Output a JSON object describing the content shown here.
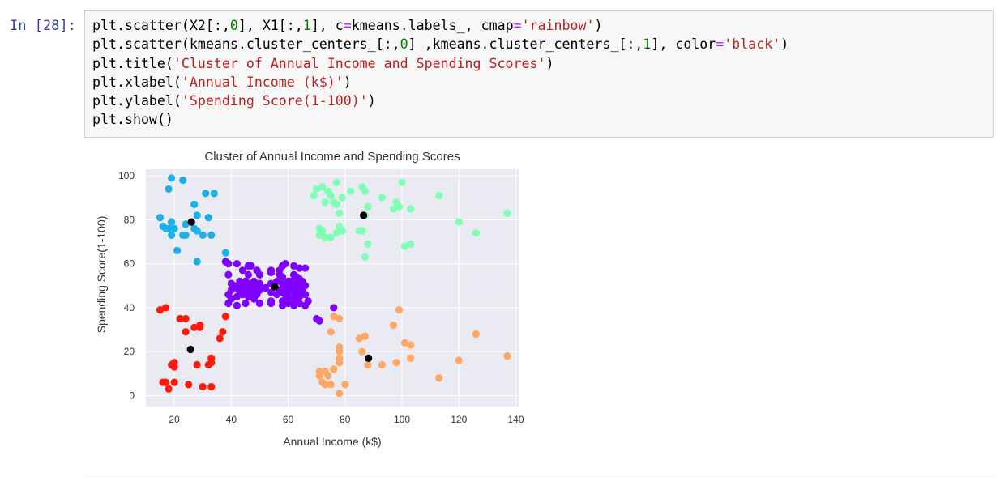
{
  "cell": {
    "prompt": "In [28]:",
    "code_lines": [
      [
        {
          "t": "plt.scatter(X2[:,"
        },
        {
          "t": "0",
          "c": "num"
        },
        {
          "t": "], X1[:,"
        },
        {
          "t": "1",
          "c": "num"
        },
        {
          "t": "], c"
        },
        {
          "t": "=",
          "c": "op"
        },
        {
          "t": "kmeans.labels_, cmap"
        },
        {
          "t": "=",
          "c": "op"
        },
        {
          "t": "'rainbow'",
          "c": "str"
        },
        {
          "t": ")"
        }
      ],
      [
        {
          "t": "plt.scatter(kmeans.cluster_centers_[:,"
        },
        {
          "t": "0",
          "c": "num"
        },
        {
          "t": "] ,kmeans.cluster_centers_[:,"
        },
        {
          "t": "1",
          "c": "num"
        },
        {
          "t": "], color"
        },
        {
          "t": "=",
          "c": "op"
        },
        {
          "t": "'black'",
          "c": "str"
        },
        {
          "t": ")"
        }
      ],
      [
        {
          "t": "plt.title("
        },
        {
          "t": "'Cluster of Annual Income and Spending Scores'",
          "c": "str"
        },
        {
          "t": ")"
        }
      ],
      [
        {
          "t": "plt.xlabel("
        },
        {
          "t": "'Annual Income (k$)'",
          "c": "str"
        },
        {
          "t": ")"
        }
      ],
      [
        {
          "t": "plt.ylabel("
        },
        {
          "t": "'Spending Score(1-100)'",
          "c": "str"
        },
        {
          "t": ")"
        }
      ],
      [
        {
          "t": "plt.show()"
        }
      ]
    ]
  },
  "chart_data": {
    "type": "scatter",
    "title": "Cluster of Annual Income and Spending Scores",
    "xlabel": "Annual Income (k$)",
    "ylabel": "Spending Score(1-100)",
    "xlim": [
      10,
      141
    ],
    "ylim": [
      -5,
      103
    ],
    "xticks": [
      20,
      40,
      60,
      80,
      100,
      120,
      140
    ],
    "yticks": [
      0,
      20,
      40,
      60,
      80,
      100
    ],
    "grid": true,
    "legend": "none",
    "colors": {
      "bg": "#eaeaf2",
      "grid": "#ffffff",
      "text": "#333333"
    },
    "series": [
      {
        "color": "#1ab0e8",
        "points": [
          [
            19,
            99
          ],
          [
            23,
            98
          ],
          [
            18,
            94
          ],
          [
            31,
            92
          ],
          [
            34,
            92
          ],
          [
            27,
            87
          ],
          [
            28,
            82
          ],
          [
            15,
            81
          ],
          [
            32,
            81
          ],
          [
            19,
            79
          ],
          [
            24,
            78
          ],
          [
            16,
            77
          ],
          [
            17,
            76
          ],
          [
            18,
            76
          ],
          [
            20,
            76
          ],
          [
            27,
            76
          ],
          [
            28,
            75
          ],
          [
            19,
            73
          ],
          [
            23,
            73
          ],
          [
            24,
            73
          ],
          [
            30,
            73
          ],
          [
            33,
            73
          ],
          [
            21,
            66
          ],
          [
            38,
            65
          ],
          [
            28,
            61
          ]
        ]
      },
      {
        "color": "#8000ff",
        "points": [
          [
            38,
            61
          ],
          [
            39,
            60
          ],
          [
            42,
            60
          ],
          [
            46,
            59
          ],
          [
            47,
            59
          ],
          [
            59,
            60
          ],
          [
            62,
            59
          ],
          [
            58,
            59
          ],
          [
            64,
            58
          ],
          [
            66,
            58
          ],
          [
            44,
            57
          ],
          [
            49,
            57
          ],
          [
            54,
            57
          ],
          [
            57,
            57
          ],
          [
            54,
            56
          ],
          [
            57,
            55
          ],
          [
            62,
            55
          ],
          [
            39,
            55
          ],
          [
            46,
            55
          ],
          [
            50,
            55
          ],
          [
            58,
            54
          ],
          [
            63,
            54
          ],
          [
            64,
            53
          ],
          [
            43,
            52
          ],
          [
            45,
            52
          ],
          [
            48,
            52
          ],
          [
            56,
            52
          ],
          [
            60,
            52
          ],
          [
            61,
            52
          ],
          [
            65,
            52
          ],
          [
            40,
            51
          ],
          [
            46,
            51
          ],
          [
            50,
            51
          ],
          [
            54,
            51
          ],
          [
            58,
            51
          ],
          [
            63,
            51
          ],
          [
            41,
            50
          ],
          [
            44,
            50
          ],
          [
            47,
            50
          ],
          [
            49,
            50
          ],
          [
            59,
            50
          ],
          [
            63,
            50
          ],
          [
            66,
            50
          ],
          [
            42,
            49
          ],
          [
            45,
            49
          ],
          [
            48,
            49
          ],
          [
            52,
            49
          ],
          [
            61,
            49
          ],
          [
            64,
            49
          ],
          [
            40,
            48
          ],
          [
            46,
            48
          ],
          [
            50,
            48
          ],
          [
            57,
            48
          ],
          [
            60,
            48
          ],
          [
            65,
            48
          ],
          [
            43,
            47
          ],
          [
            47,
            47
          ],
          [
            54,
            47
          ],
          [
            58,
            47
          ],
          [
            62,
            47
          ],
          [
            39,
            46
          ],
          [
            44,
            46
          ],
          [
            49,
            46
          ],
          [
            56,
            46
          ],
          [
            59,
            46
          ],
          [
            63,
            46
          ],
          [
            66,
            46
          ],
          [
            42,
            45
          ],
          [
            46,
            45
          ],
          [
            60,
            45
          ],
          [
            64,
            45
          ],
          [
            40,
            44
          ],
          [
            48,
            44
          ],
          [
            62,
            44
          ],
          [
            54,
            43
          ],
          [
            58,
            43
          ],
          [
            63,
            43
          ],
          [
            67,
            43
          ],
          [
            39,
            42
          ],
          [
            45,
            42
          ],
          [
            50,
            42
          ],
          [
            54,
            42
          ],
          [
            60,
            42
          ],
          [
            64,
            42
          ],
          [
            42,
            41
          ],
          [
            58,
            41
          ],
          [
            62,
            41
          ],
          [
            66,
            41
          ],
          [
            76,
            40
          ],
          [
            70,
            35
          ],
          [
            71,
            34
          ]
        ]
      },
      {
        "color": "#80ffb4",
        "points": [
          [
            77,
            97
          ],
          [
            100,
            97
          ],
          [
            72,
            95
          ],
          [
            86,
            95
          ],
          [
            70,
            94
          ],
          [
            74,
            93
          ],
          [
            82,
            93
          ],
          [
            87,
            93
          ],
          [
            93,
            90
          ],
          [
            69,
            91
          ],
          [
            75,
            91
          ],
          [
            79,
            90
          ],
          [
            113,
            91
          ],
          [
            73,
            88
          ],
          [
            76,
            88
          ],
          [
            98,
            88
          ],
          [
            77,
            87
          ],
          [
            99,
            86
          ],
          [
            88,
            86
          ],
          [
            97,
            85
          ],
          [
            103,
            85
          ],
          [
            78,
            83
          ],
          [
            87,
            82
          ],
          [
            137,
            83
          ],
          [
            120,
            79
          ],
          [
            78,
            77
          ],
          [
            71,
            76
          ],
          [
            72,
            75
          ],
          [
            79,
            75
          ],
          [
            85,
            75
          ],
          [
            86,
            75
          ],
          [
            77,
            74
          ],
          [
            126,
            74
          ],
          [
            71,
            73
          ],
          [
            73,
            72
          ],
          [
            75,
            72
          ],
          [
            88,
            69
          ],
          [
            103,
            69
          ],
          [
            101,
            68
          ],
          [
            87,
            63
          ]
        ]
      },
      {
        "color": "#ffa866",
        "points": [
          [
            76,
            36
          ],
          [
            78,
            35
          ],
          [
            99,
            39
          ],
          [
            97,
            32
          ],
          [
            126,
            28
          ],
          [
            75,
            29
          ],
          [
            85,
            26
          ],
          [
            87,
            27
          ],
          [
            101,
            24
          ],
          [
            103,
            23
          ],
          [
            86,
            20
          ],
          [
            78,
            22
          ],
          [
            78,
            20
          ],
          [
            78,
            17
          ],
          [
            103,
            17
          ],
          [
            78,
            15
          ],
          [
            137,
            18
          ],
          [
            98,
            15
          ],
          [
            120,
            16
          ],
          [
            93,
            14
          ],
          [
            88,
            14
          ],
          [
            76,
            12
          ],
          [
            71,
            11
          ],
          [
            73,
            11
          ],
          [
            74,
            9
          ],
          [
            71,
            9
          ],
          [
            113,
            8
          ],
          [
            72,
            6
          ],
          [
            73,
            5
          ],
          [
            75,
            5
          ],
          [
            80,
            5
          ],
          [
            78,
            1
          ]
        ]
      },
      {
        "color": "#ff1a0d",
        "points": [
          [
            15,
            39
          ],
          [
            17,
            40
          ],
          [
            24,
            35
          ],
          [
            22,
            35
          ],
          [
            38,
            36
          ],
          [
            29,
            32
          ],
          [
            29,
            31
          ],
          [
            37,
            29
          ],
          [
            27,
            31
          ],
          [
            24,
            29
          ],
          [
            36,
            26
          ],
          [
            33,
            17
          ],
          [
            20,
            15
          ],
          [
            20,
            13
          ],
          [
            19,
            14
          ],
          [
            32,
            14
          ],
          [
            28,
            14
          ],
          [
            33,
            15
          ],
          [
            16,
            6
          ],
          [
            17,
            6
          ],
          [
            20,
            6
          ],
          [
            25,
            5
          ],
          [
            18,
            3
          ],
          [
            30,
            4
          ],
          [
            33,
            4
          ]
        ]
      },
      {
        "color": "#000000",
        "points": [
          [
            26,
            79
          ],
          [
            25.7,
            21
          ],
          [
            55.3,
            49.5
          ],
          [
            86.5,
            82
          ],
          [
            88.2,
            17
          ]
        ]
      }
    ]
  }
}
